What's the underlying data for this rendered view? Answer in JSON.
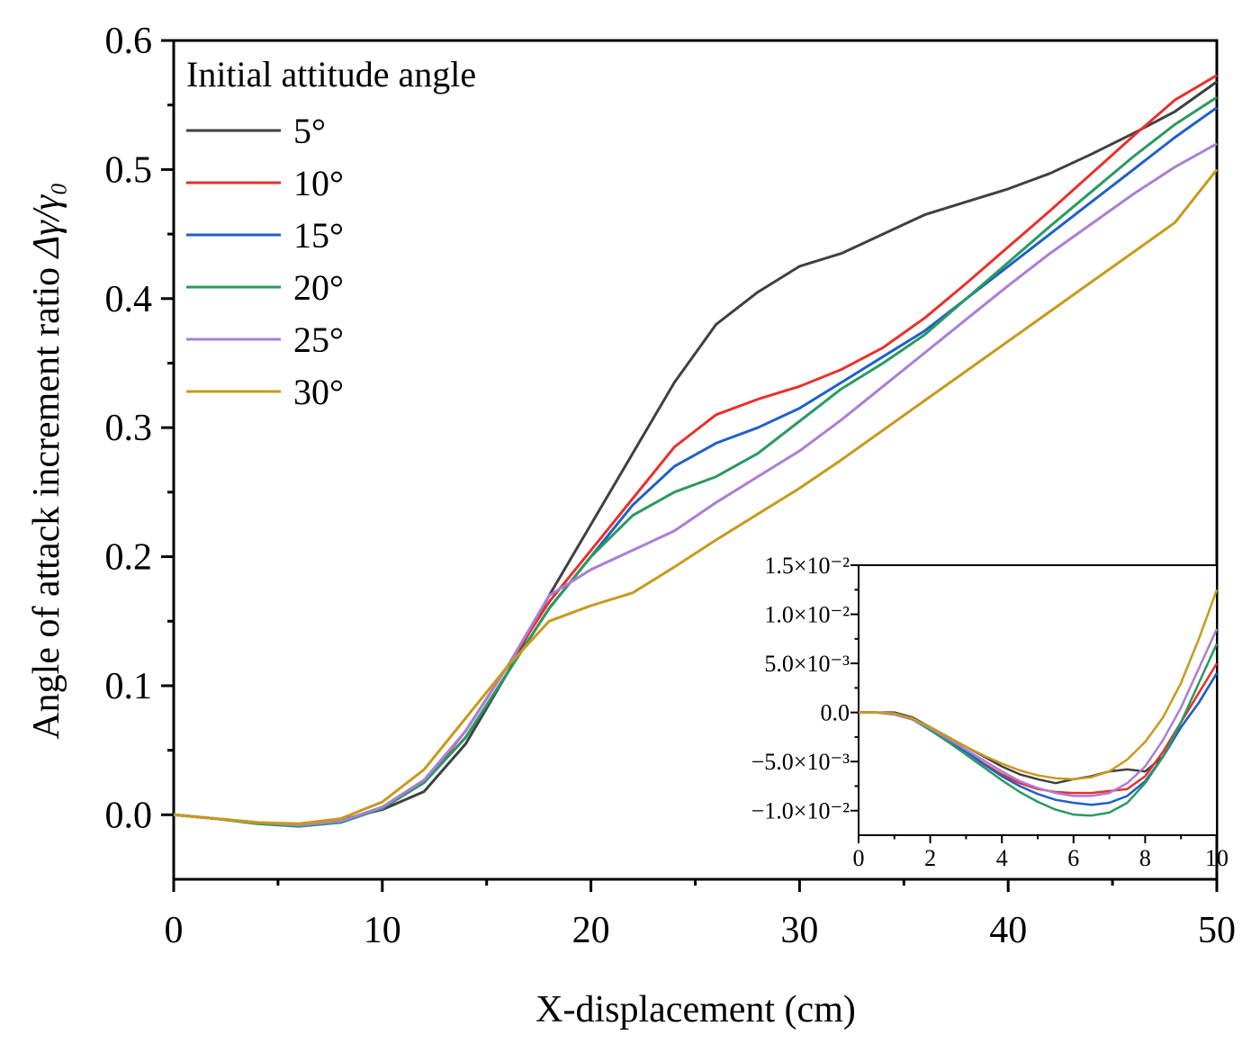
{
  "chart_data": [
    {
      "type": "line",
      "role": "main",
      "title": "",
      "xlabel": "X-displacement (cm)",
      "ylabel_prefix": "Angle of attack increment ratio ",
      "ylabel_symbol": "Δγ/γ₀",
      "xlim": [
        0,
        50
      ],
      "ylim": [
        -0.05,
        0.6
      ],
      "x_ticks": [
        0,
        10,
        20,
        30,
        40,
        50
      ],
      "x_tick_labels": [
        "0",
        "10",
        "20",
        "30",
        "40",
        "50"
      ],
      "y_ticks": [
        0.0,
        0.1,
        0.2,
        0.3,
        0.4,
        0.5,
        0.6
      ],
      "y_tick_labels": [
        "0.0",
        "0.1",
        "0.2",
        "0.3",
        "0.4",
        "0.5",
        "0.6"
      ],
      "grid": false,
      "legend_title": "Initial attitude angle",
      "legend_position": "top-left",
      "x": [
        0,
        2,
        4,
        6,
        8,
        10,
        12,
        14,
        16,
        18,
        20,
        22,
        24,
        26,
        28,
        30,
        32,
        34,
        36,
        38,
        40,
        42,
        44,
        46,
        48,
        50
      ],
      "series": [
        {
          "name": "5°",
          "color": "#404040",
          "values": [
            0,
            -0.003,
            -0.006,
            -0.008,
            -0.004,
            0.004,
            0.018,
            0.055,
            0.11,
            0.17,
            0.225,
            0.28,
            0.335,
            0.38,
            0.405,
            0.425,
            0.435,
            0.45,
            0.465,
            0.475,
            0.485,
            0.497,
            0.512,
            0.528,
            0.545,
            0.568
          ]
        },
        {
          "name": "10°",
          "color": "#e8312c",
          "values": [
            0,
            -0.003,
            -0.006,
            -0.008,
            -0.005,
            0.005,
            0.025,
            0.065,
            0.115,
            0.165,
            0.205,
            0.245,
            0.285,
            0.31,
            0.322,
            0.332,
            0.345,
            0.362,
            0.385,
            0.412,
            0.44,
            0.468,
            0.497,
            0.526,
            0.554,
            0.573
          ]
        },
        {
          "name": "15°",
          "color": "#2060c8",
          "values": [
            0,
            -0.003,
            -0.006,
            -0.008,
            -0.006,
            0.005,
            0.025,
            0.06,
            0.11,
            0.16,
            0.2,
            0.24,
            0.27,
            0.288,
            0.3,
            0.315,
            0.335,
            0.355,
            0.375,
            0.4,
            0.425,
            0.45,
            0.475,
            0.5,
            0.525,
            0.548
          ]
        },
        {
          "name": "20°",
          "color": "#2a9a5e",
          "values": [
            0,
            -0.003,
            -0.007,
            -0.009,
            -0.006,
            0.005,
            0.025,
            0.06,
            0.11,
            0.16,
            0.2,
            0.232,
            0.25,
            0.262,
            0.28,
            0.305,
            0.33,
            0.35,
            0.372,
            0.4,
            0.428,
            0.456,
            0.483,
            0.51,
            0.535,
            0.556
          ]
        },
        {
          "name": "25°",
          "color": "#a97fd6",
          "values": [
            0,
            -0.003,
            -0.006,
            -0.008,
            -0.005,
            0.006,
            0.027,
            0.065,
            0.115,
            0.17,
            0.19,
            0.205,
            0.22,
            0.242,
            0.262,
            0.282,
            0.306,
            0.332,
            0.358,
            0.384,
            0.41,
            0.435,
            0.458,
            0.481,
            0.502,
            0.52
          ]
        },
        {
          "name": "30°",
          "color": "#c89a1a",
          "values": [
            0,
            -0.003,
            -0.006,
            -0.007,
            -0.003,
            0.01,
            0.035,
            0.075,
            0.115,
            0.15,
            0.162,
            0.172,
            0.192,
            0.213,
            0.233,
            0.253,
            0.275,
            0.298,
            0.321,
            0.344,
            0.367,
            0.39,
            0.413,
            0.436,
            0.459,
            0.5
          ]
        }
      ]
    },
    {
      "type": "line",
      "role": "inset",
      "xlim": [
        0,
        10
      ],
      "ylim": [
        -0.0125,
        0.015
      ],
      "x_ticks": [
        0,
        2,
        4,
        6,
        8,
        10
      ],
      "x_tick_labels": [
        "0",
        "2",
        "4",
        "6",
        "8",
        "10"
      ],
      "y_ticks": [
        -0.01,
        -0.005,
        0.0,
        0.005,
        0.01,
        0.015
      ],
      "y_tick_labels": [
        "−1.0×10⁻²",
        "−5.0×10⁻³",
        "0.0",
        "5.0×10⁻³",
        "1.0×10⁻²",
        "1.5×10⁻²"
      ],
      "x": [
        0,
        0.5,
        1,
        1.5,
        2,
        2.5,
        3,
        3.5,
        4,
        4.5,
        5,
        5.5,
        6,
        6.5,
        7,
        7.5,
        8,
        8.5,
        9,
        9.5,
        10
      ],
      "series": [
        {
          "name": "5°",
          "color": "#404040",
          "values": [
            0,
            0,
            0,
            -0.0005,
            -0.0015,
            -0.0025,
            -0.0035,
            -0.0045,
            -0.0055,
            -0.0063,
            -0.0068,
            -0.0072,
            -0.0068,
            -0.0065,
            -0.006,
            -0.0058,
            -0.006,
            -0.0045,
            -0.0015,
            0.001,
            0.004
          ]
        },
        {
          "name": "10°",
          "color": "#e8312c",
          "values": [
            0,
            0,
            -0.0002,
            -0.0007,
            -0.0017,
            -0.0028,
            -0.004,
            -0.0052,
            -0.0063,
            -0.0072,
            -0.0078,
            -0.0081,
            -0.0082,
            -0.0082,
            -0.008,
            -0.0078,
            -0.0065,
            -0.004,
            -0.001,
            0.002,
            0.005
          ]
        },
        {
          "name": "15°",
          "color": "#2060c8",
          "values": [
            0,
            0,
            -0.0002,
            -0.0007,
            -0.0017,
            -0.0028,
            -0.004,
            -0.0053,
            -0.0065,
            -0.0075,
            -0.0083,
            -0.0089,
            -0.0092,
            -0.0094,
            -0.0092,
            -0.0085,
            -0.007,
            -0.0045,
            -0.0015,
            0.001,
            0.004
          ]
        },
        {
          "name": "20°",
          "color": "#2a9a5e",
          "values": [
            0,
            0,
            -0.0002,
            -0.0007,
            -0.0018,
            -0.003,
            -0.0043,
            -0.0056,
            -0.0069,
            -0.0081,
            -0.0091,
            -0.0099,
            -0.0104,
            -0.0105,
            -0.0102,
            -0.0092,
            -0.0072,
            -0.0045,
            -0.001,
            0.003,
            0.007
          ]
        },
        {
          "name": "25°",
          "color": "#a97fd6",
          "values": [
            0,
            0,
            -0.0002,
            -0.0007,
            -0.0016,
            -0.0027,
            -0.0038,
            -0.0049,
            -0.006,
            -0.007,
            -0.0077,
            -0.0082,
            -0.0085,
            -0.0085,
            -0.0082,
            -0.0072,
            -0.0055,
            -0.0028,
            0.0005,
            0.0045,
            0.0085
          ]
        },
        {
          "name": "30°",
          "color": "#c89a1a",
          "values": [
            0,
            0,
            -0.0001,
            -0.0006,
            -0.0015,
            -0.0025,
            -0.0035,
            -0.0044,
            -0.0052,
            -0.0059,
            -0.0064,
            -0.0067,
            -0.0068,
            -0.0066,
            -0.006,
            -0.0048,
            -0.003,
            -0.0005,
            0.003,
            0.0075,
            0.0125
          ]
        }
      ]
    }
  ]
}
